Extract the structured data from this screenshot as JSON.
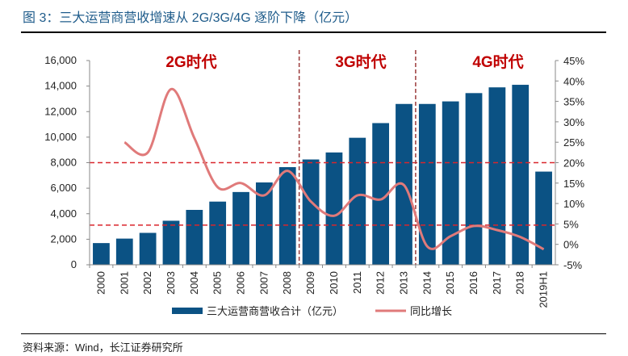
{
  "figure_title": "图 3：三大运营商营收增速从 2G/3G/4G 逐阶下降（亿元）",
  "source": "资料来源：Wind，长江证券研究所",
  "colors": {
    "title": "#1f5c8b",
    "bar": "#0b5284",
    "line": "#e07a7a",
    "era": "#c00000",
    "refline": "#d9262c",
    "divider": "#9b3b3b"
  },
  "chart_data": {
    "type": "bar+line",
    "categories": [
      "2000",
      "2001",
      "2002",
      "2003",
      "2004",
      "2005",
      "2006",
      "2007",
      "2008",
      "2009",
      "2010",
      "2011",
      "2012",
      "2013",
      "2014",
      "2015",
      "2016",
      "2017",
      "2018",
      "2019H1"
    ],
    "series": [
      {
        "name": "三大运营商营收合计（亿元）",
        "type": "bar",
        "axis": "left",
        "values": [
          1700,
          2050,
          2500,
          3450,
          4300,
          4950,
          5700,
          6450,
          7650,
          8250,
          8800,
          9950,
          11100,
          12600,
          12600,
          12800,
          13450,
          13900,
          14100,
          7300
        ]
      },
      {
        "name": "同比增长",
        "type": "line",
        "axis": "right",
        "values": [
          null,
          25,
          22.5,
          38,
          26,
          14,
          15,
          12,
          18,
          10.5,
          7,
          12,
          11,
          14.5,
          -0.5,
          2,
          4.5,
          3.5,
          1.8,
          -1.2
        ]
      }
    ],
    "left_axis": {
      "ylim": [
        0,
        16000
      ],
      "ticks": [
        "0",
        "2,000",
        "4,000",
        "6,000",
        "8,000",
        "10,000",
        "12,000",
        "14,000",
        "16,000"
      ]
    },
    "right_axis": {
      "ylim": [
        -5,
        45
      ],
      "ticks": [
        "-5%",
        "0%",
        "5%",
        "10%",
        "15%",
        "20%",
        "25%",
        "30%",
        "35%",
        "40%",
        "45%"
      ]
    },
    "reference_lines_pct": [
      20,
      4.7
    ],
    "era_dividers_after": [
      "2008",
      "2013"
    ],
    "eras": [
      "2G时代",
      "3G时代",
      "4G时代"
    ],
    "legend_position": "bottom",
    "grid": false
  }
}
